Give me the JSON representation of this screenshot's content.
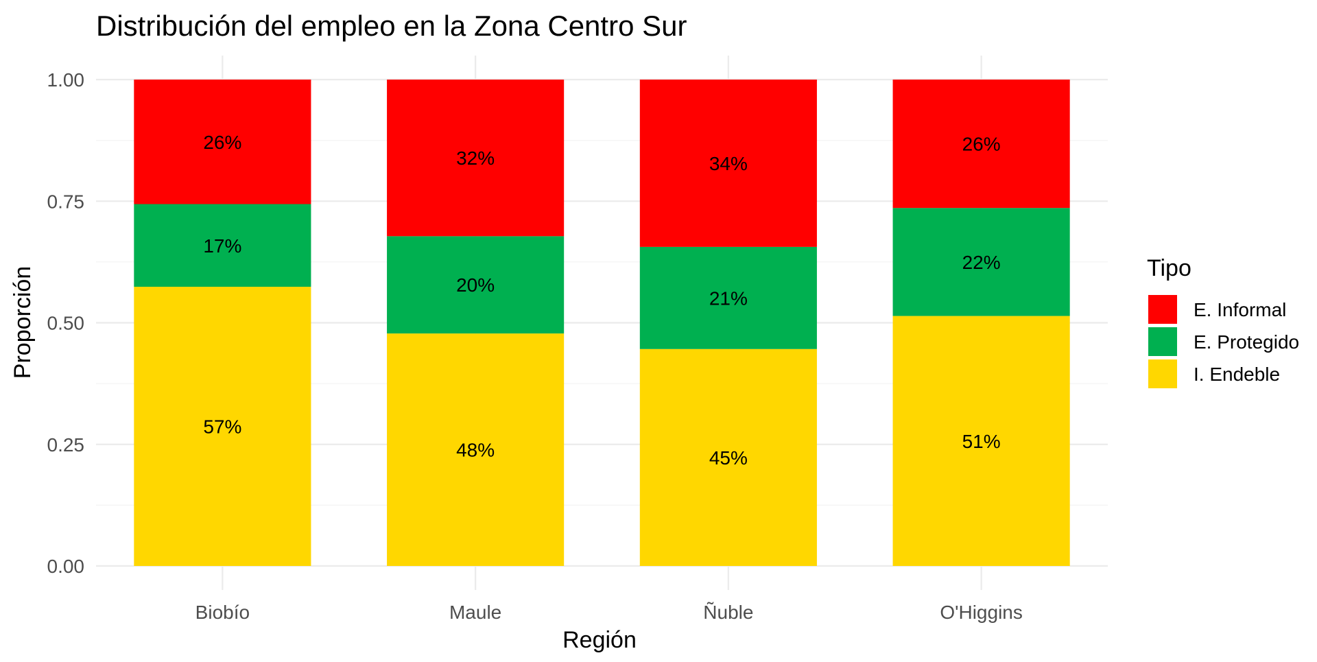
{
  "chart_data": {
    "type": "bar",
    "stacked": true,
    "title": "Distribución del empleo en la Zona Centro Sur",
    "xlabel": "Región",
    "ylabel": "Proporción",
    "ylim": [
      0,
      1
    ],
    "y_ticks": [
      "0.00",
      "0.25",
      "0.50",
      "0.75",
      "1.00"
    ],
    "grid": true,
    "legend": {
      "title": "Tipo",
      "position": "right"
    },
    "categories": [
      "Biobío",
      "Maule",
      "Ñuble",
      "O'Higgins"
    ],
    "series": [
      {
        "name": "I. Endeble",
        "color": "#FFD700",
        "values": [
          0.574,
          0.478,
          0.446,
          0.514
        ],
        "labels": [
          "57%",
          "48%",
          "45%",
          "51%"
        ]
      },
      {
        "name": "E. Protegido",
        "color": "#00B050",
        "values": [
          0.17,
          0.2,
          0.21,
          0.222
        ],
        "labels": [
          "17%",
          "20%",
          "21%",
          "22%"
        ]
      },
      {
        "name": "E. Informal",
        "color": "#FF0000",
        "values": [
          0.256,
          0.322,
          0.344,
          0.264
        ],
        "labels": [
          "26%",
          "32%",
          "34%",
          "26%"
        ]
      }
    ],
    "legend_order": [
      "E. Informal",
      "E. Protegido",
      "I. Endeble"
    ]
  }
}
